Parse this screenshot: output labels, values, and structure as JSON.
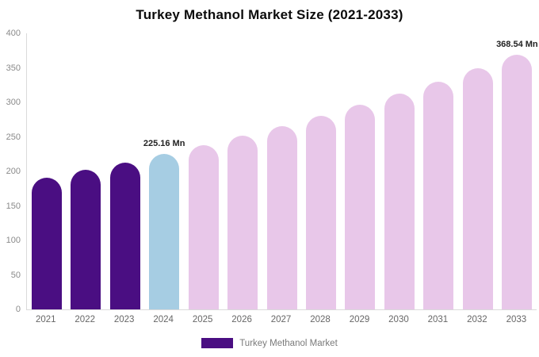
{
  "legend": {
    "label": "Turkey Methanol Market",
    "swatch_color": "#4A0E82"
  },
  "chart_data": {
    "type": "bar",
    "title": "Turkey Methanol Market Size (2021-2033)",
    "categories": [
      "2021",
      "2022",
      "2023",
      "2024",
      "2025",
      "2026",
      "2027",
      "2028",
      "2029",
      "2030",
      "2031",
      "2032",
      "2033"
    ],
    "values": [
      191.0,
      201.8,
      213.2,
      225.16,
      237.8,
      251.2,
      265.3,
      280.3,
      296.0,
      312.7,
      330.3,
      348.9,
      368.54
    ],
    "bar_colors": [
      "#4A0E82",
      "#4A0E82",
      "#4A0E82",
      "#A6CDE3",
      "#E8C7E9",
      "#E8C7E9",
      "#E8C7E9",
      "#E8C7E9",
      "#E8C7E9",
      "#E8C7E9",
      "#E8C7E9",
      "#E8C7E9",
      "#E8C7E9"
    ],
    "annotations": [
      {
        "index": 3,
        "text": "225.16 Mn"
      },
      {
        "index": 12,
        "text": "368.54 Mn"
      }
    ],
    "xlabel": "",
    "ylabel": "",
    "ylim": [
      0,
      400
    ],
    "ytick_step": 50,
    "grid": false,
    "legend_position": "bottom",
    "legend_entries": [
      "Turkey Methanol Market"
    ]
  }
}
